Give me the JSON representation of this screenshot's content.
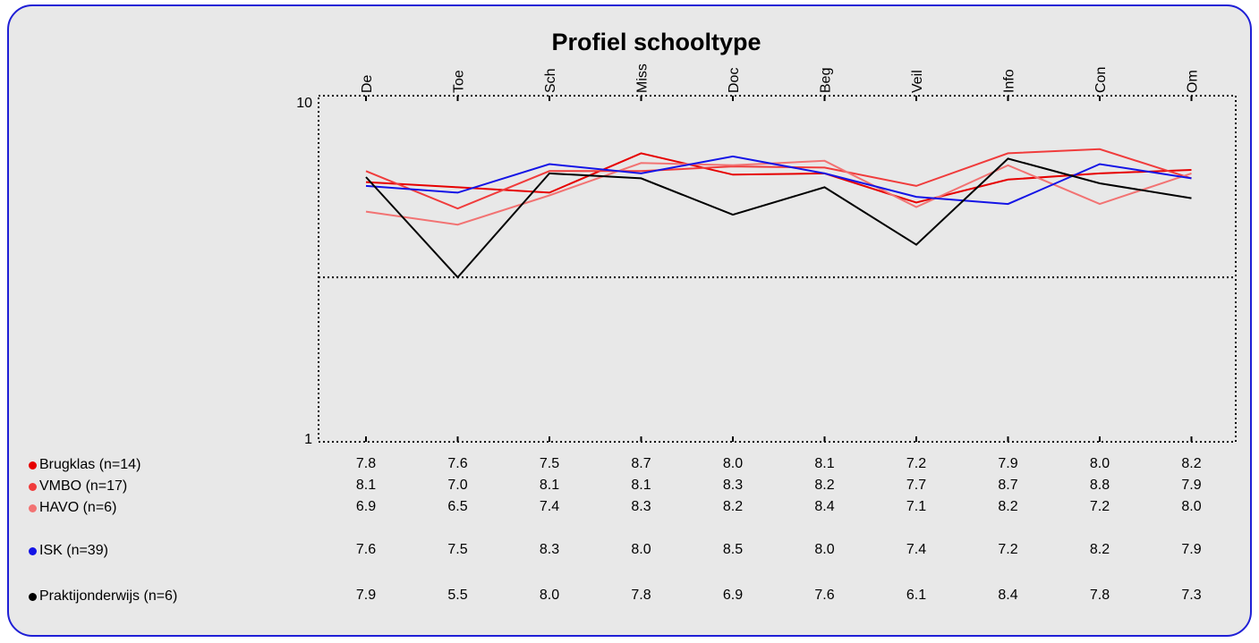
{
  "chart_data": {
    "type": "line",
    "title": "Profiel schooltype",
    "categories": [
      "De",
      "Toe",
      "Sch",
      "Miss",
      "Doc",
      "Beg",
      "Veil",
      "Info",
      "Con",
      "Om"
    ],
    "y_scale": "log",
    "ylim": [
      1,
      10
    ],
    "y_ticks": [
      "10",
      "1"
    ],
    "grid": false,
    "reference_line": 3,
    "legend_position": "below-left",
    "series": [
      {
        "name": "Brugklas (n=14)",
        "color": "#e60000",
        "values": [
          7.8,
          7.6,
          7.5,
          8.7,
          8.0,
          8.1,
          7.2,
          7.9,
          8.0,
          8.2
        ]
      },
      {
        "name": "VMBO (n=17)",
        "color": "#f03c3c",
        "values": [
          8.1,
          7.0,
          8.1,
          8.1,
          8.3,
          8.2,
          7.7,
          8.7,
          8.8,
          7.9
        ]
      },
      {
        "name": "HAVO (n=6)",
        "color": "#f27373",
        "values": [
          6.9,
          6.5,
          7.4,
          8.3,
          8.2,
          8.4,
          7.1,
          8.2,
          7.2,
          8.0
        ]
      },
      {
        "name": "ISK (n=39)",
        "color": "#1414e6",
        "values": [
          7.6,
          7.5,
          8.3,
          8.0,
          8.5,
          8.0,
          7.4,
          7.2,
          8.2,
          7.9
        ]
      },
      {
        "name": "Praktijonderwijs (n=6)",
        "color": "#000000",
        "values": [
          7.9,
          5.5,
          8.0,
          7.8,
          6.9,
          7.6,
          6.1,
          8.4,
          7.8,
          7.3
        ]
      }
    ],
    "line_values": [
      [
        5.75,
        5.55,
        5.35,
        7.0,
        6.05,
        6.1,
        5.0,
        5.85,
        6.1,
        6.25
      ],
      [
        6.2,
        4.8,
        6.2,
        6.2,
        6.4,
        6.35,
        5.6,
        7.0,
        7.2,
        5.9
      ],
      [
        4.7,
        4.3,
        5.25,
        6.55,
        6.45,
        6.65,
        4.85,
        6.45,
        4.95,
        6.1
      ],
      [
        5.6,
        5.35,
        6.5,
        6.1,
        6.85,
        6.1,
        5.2,
        4.95,
        6.5,
        5.9
      ],
      [
        5.95,
        3.0,
        6.1,
        5.9,
        4.6,
        5.55,
        3.75,
        6.75,
        5.7,
        5.15
      ]
    ]
  }
}
